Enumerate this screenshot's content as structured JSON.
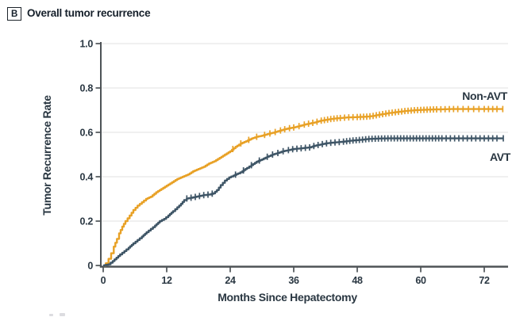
{
  "header": {
    "panel": "B",
    "title": "Overall tumor recurrence"
  },
  "chart_data": {
    "type": "line",
    "subtype": "cumulative-incidence-step-km",
    "panel_label": "B",
    "title": "Overall tumor recurrence",
    "xlabel": "Months Since Hepatectomy",
    "ylabel": "Tumor Recurrence Rate",
    "xlim": [
      0,
      77
    ],
    "ylim": [
      0,
      1.0
    ],
    "xticks": [
      0,
      12,
      24,
      36,
      48,
      60,
      72
    ],
    "yticks": [
      0,
      0.2,
      0.4,
      0.6,
      0.8,
      1.0
    ],
    "ytick_labels": [
      "0",
      "0.2",
      "0.4",
      "0.6",
      "0.8",
      "1.0"
    ],
    "grid": "horizontal",
    "legend_position": "end-of-line-labels",
    "colors": {
      "non_avt": "#E8A126",
      "avt": "#3E5566",
      "axis": "#4e5357",
      "grid": "#e8e8e8",
      "text": "#2a3742"
    },
    "series": [
      {
        "name": "Non-AVT",
        "color": "#E8A126",
        "points": [
          [
            0,
            0
          ],
          [
            0.5,
            0.01
          ],
          [
            1,
            0.03
          ],
          [
            1.5,
            0.055
          ],
          [
            2,
            0.085
          ],
          [
            2.6,
            0.12
          ],
          [
            3,
            0.145
          ],
          [
            3.6,
            0.175
          ],
          [
            4.2,
            0.2
          ],
          [
            5,
            0.225
          ],
          [
            5.7,
            0.25
          ],
          [
            6.5,
            0.27
          ],
          [
            7.3,
            0.285
          ],
          [
            8.1,
            0.3
          ],
          [
            9,
            0.31
          ],
          [
            10,
            0.33
          ],
          [
            11,
            0.345
          ],
          [
            12,
            0.36
          ],
          [
            13,
            0.375
          ],
          [
            14,
            0.39
          ],
          [
            15,
            0.4
          ],
          [
            16,
            0.41
          ],
          [
            17,
            0.425
          ],
          [
            18,
            0.435
          ],
          [
            19,
            0.445
          ],
          [
            20,
            0.46
          ],
          [
            21,
            0.47
          ],
          [
            22,
            0.485
          ],
          [
            23,
            0.5
          ],
          [
            24,
            0.515
          ],
          [
            25,
            0.535
          ],
          [
            26,
            0.55
          ],
          [
            27,
            0.56
          ],
          [
            28,
            0.572
          ],
          [
            29,
            0.58
          ],
          [
            30,
            0.585
          ],
          [
            31,
            0.592
          ],
          [
            32,
            0.598
          ],
          [
            33,
            0.605
          ],
          [
            34,
            0.612
          ],
          [
            35,
            0.618
          ],
          [
            36,
            0.622
          ],
          [
            37,
            0.628
          ],
          [
            38,
            0.635
          ],
          [
            39,
            0.64
          ],
          [
            40,
            0.645
          ],
          [
            41,
            0.652
          ],
          [
            42,
            0.656
          ],
          [
            43,
            0.66
          ],
          [
            44,
            0.663
          ],
          [
            45,
            0.665
          ],
          [
            46,
            0.667
          ],
          [
            47,
            0.668
          ],
          [
            48,
            0.669
          ],
          [
            49,
            0.67
          ],
          [
            50,
            0.671
          ],
          [
            51,
            0.674
          ],
          [
            52,
            0.679
          ],
          [
            53,
            0.683
          ],
          [
            54,
            0.687
          ],
          [
            55,
            0.69
          ],
          [
            56,
            0.693
          ],
          [
            57,
            0.696
          ],
          [
            58,
            0.698
          ],
          [
            59,
            0.7
          ],
          [
            60,
            0.701
          ],
          [
            62,
            0.703
          ],
          [
            64,
            0.704
          ],
          [
            66,
            0.705
          ],
          [
            68,
            0.705
          ],
          [
            70,
            0.705
          ],
          [
            72,
            0.705
          ],
          [
            75.5,
            0.705
          ]
        ],
        "censor_ticks": [
          24.5,
          26,
          27.5,
          29,
          30.5,
          31.5,
          32.5,
          33.5,
          34.3,
          35.2,
          36,
          37,
          38,
          38.8,
          39.6,
          40.4,
          41.2,
          41.8,
          42.4,
          43,
          43.6,
          44.2,
          44.8,
          45.6,
          46.4,
          47.2,
          48,
          48.6,
          49.2,
          49.8,
          50.4,
          51,
          51.6,
          52.2,
          52.8,
          53.4,
          54,
          54.6,
          55.2,
          55.8,
          56.4,
          57,
          57.6,
          58.2,
          58.8,
          59.4,
          60,
          60.6,
          61.2,
          61.8,
          62.4,
          63,
          63.8,
          64.6,
          65.4,
          66.2,
          67,
          68,
          69,
          70,
          71,
          72,
          72.8,
          73.6,
          74.4,
          75.5
        ]
      },
      {
        "name": "AVT",
        "color": "#3E5566",
        "points": [
          [
            0,
            0
          ],
          [
            1,
            0.005
          ],
          [
            1.8,
            0.02
          ],
          [
            2.5,
            0.035
          ],
          [
            3.2,
            0.05
          ],
          [
            4,
            0.065
          ],
          [
            4.8,
            0.08
          ],
          [
            5.7,
            0.1
          ],
          [
            6.5,
            0.115
          ],
          [
            7.3,
            0.13
          ],
          [
            8.2,
            0.15
          ],
          [
            9,
            0.165
          ],
          [
            9.8,
            0.18
          ],
          [
            10.7,
            0.2
          ],
          [
            11.5,
            0.21
          ],
          [
            12.3,
            0.225
          ],
          [
            13.2,
            0.245
          ],
          [
            14,
            0.262
          ],
          [
            14.7,
            0.278
          ],
          [
            15.3,
            0.295
          ],
          [
            15.8,
            0.302
          ],
          [
            17,
            0.307
          ],
          [
            18,
            0.312
          ],
          [
            19,
            0.317
          ],
          [
            20,
            0.32
          ],
          [
            20.8,
            0.325
          ],
          [
            21.5,
            0.34
          ],
          [
            22.2,
            0.362
          ],
          [
            23,
            0.383
          ],
          [
            23.8,
            0.397
          ],
          [
            24.6,
            0.405
          ],
          [
            25.5,
            0.415
          ],
          [
            26.3,
            0.425
          ],
          [
            27.2,
            0.44
          ],
          [
            28,
            0.452
          ],
          [
            29,
            0.468
          ],
          [
            30,
            0.478
          ],
          [
            31,
            0.49
          ],
          [
            32,
            0.5
          ],
          [
            33,
            0.507
          ],
          [
            34,
            0.515
          ],
          [
            35,
            0.52
          ],
          [
            36,
            0.525
          ],
          [
            37,
            0.527
          ],
          [
            38,
            0.53
          ],
          [
            39,
            0.532
          ],
          [
            40,
            0.54
          ],
          [
            41,
            0.545
          ],
          [
            42,
            0.55
          ],
          [
            43,
            0.553
          ],
          [
            44,
            0.555
          ],
          [
            45,
            0.557
          ],
          [
            46,
            0.56
          ],
          [
            47,
            0.563
          ],
          [
            48,
            0.565
          ],
          [
            49,
            0.567
          ],
          [
            50,
            0.57
          ],
          [
            51,
            0.571
          ],
          [
            52,
            0.572
          ],
          [
            54,
            0.573
          ],
          [
            56,
            0.573
          ],
          [
            60,
            0.573
          ],
          [
            64,
            0.573
          ],
          [
            68,
            0.573
          ],
          [
            72,
            0.573
          ],
          [
            75.6,
            0.573
          ]
        ],
        "censor_ticks": [
          15.8,
          16.6,
          17.4,
          18.2,
          19,
          19.8,
          20.6,
          25,
          26.5,
          28,
          29.5,
          31,
          32,
          33,
          34,
          35,
          35.8,
          36.6,
          37.4,
          38.2,
          39,
          39.8,
          40.6,
          41.4,
          42.2,
          43,
          43.8,
          44.6,
          45.4,
          46,
          46.6,
          47.2,
          47.8,
          48.4,
          49,
          49.6,
          50.2,
          50.8,
          51.4,
          52,
          52.6,
          53.2,
          53.8,
          54.4,
          55,
          55.6,
          56.2,
          56.8,
          57.4,
          58,
          58.6,
          59.2,
          59.8,
          60.4,
          61,
          61.6,
          62.2,
          62.8,
          63.4,
          64,
          64.8,
          65.6,
          66.4,
          67.2,
          68,
          68.8,
          69.6,
          70.4,
          71.2,
          72,
          72.8,
          73.6,
          74.4,
          75.6
        ]
      }
    ]
  }
}
